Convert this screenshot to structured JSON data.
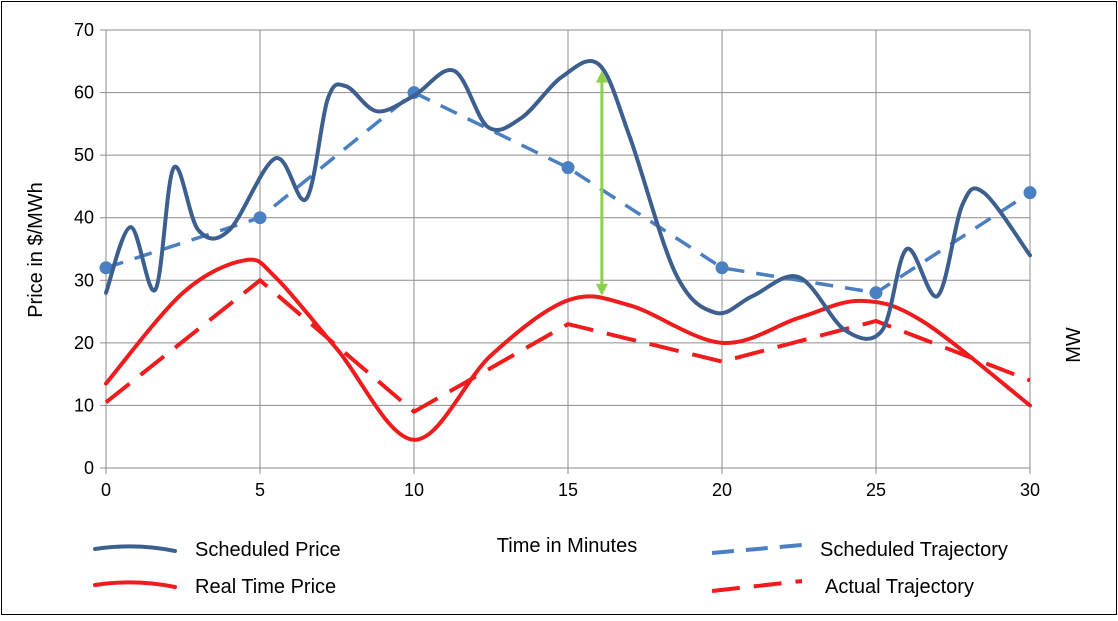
{
  "chart_data": {
    "type": "line",
    "title": "",
    "xlabel": "Time in Minutes",
    "ylabel": "Price in $/MWh",
    "y2label": "MW",
    "xlim": [
      0,
      30
    ],
    "ylim": [
      0,
      70
    ],
    "x_ticks": [
      "0",
      "5",
      "10",
      "15",
      "20",
      "25",
      "30"
    ],
    "y_ticks": [
      "0",
      "10",
      "20",
      "30",
      "40",
      "50",
      "60",
      "70"
    ],
    "grid": true,
    "legend_position": "bottom",
    "series": [
      {
        "name": "Scheduled Price",
        "color": "#3d5f8f",
        "style": "solid",
        "x": [
          0,
          0.8,
          1.6,
          2.2,
          3,
          4,
          5.5,
          6.5,
          7.2,
          7.8,
          8.8,
          10,
          11.3,
          12.4,
          13.5,
          14.8,
          16,
          17,
          18.5,
          19.8,
          21,
          22.5,
          24,
          25.2,
          26,
          27,
          27.8,
          28.5,
          30
        ],
        "y": [
          28,
          38.5,
          28.5,
          48,
          38,
          38,
          49.5,
          43,
          59,
          61,
          57,
          59.5,
          63.5,
          54.5,
          56,
          62.5,
          64.5,
          53,
          31,
          24.8,
          27.5,
          30.5,
          22,
          22,
          35,
          27.5,
          42,
          44,
          34
        ]
      },
      {
        "name": "Scheduled Trajectory",
        "color": "#4a7fc1",
        "style": "dashed-markers",
        "x": [
          0,
          5,
          10,
          15,
          20,
          25,
          30
        ],
        "y": [
          32,
          40,
          60,
          48,
          32,
          28,
          44
        ]
      },
      {
        "name": "Real Time Price",
        "color": "#ee1c1c",
        "style": "solid",
        "x": [
          0,
          2.5,
          4.5,
          5.5,
          7.5,
          10,
          12.5,
          15,
          17,
          20,
          22.5,
          24.5,
          26.5,
          30
        ],
        "y": [
          13.5,
          28,
          33.2,
          30.5,
          19,
          4.5,
          18,
          26.8,
          26,
          20,
          24,
          26.7,
          23.5,
          10
        ]
      },
      {
        "name": "Actual Trajectory",
        "color": "#ee1c1c",
        "style": "dashed",
        "x": [
          0,
          5,
          10,
          15,
          20,
          25,
          30
        ],
        "y": [
          10.5,
          30,
          9,
          23,
          17,
          23.5,
          14
        ]
      }
    ],
    "annotations": [
      {
        "type": "double-arrow",
        "color": "#8dd14b",
        "x": 16.1,
        "y_from": 27.5,
        "y_to": 63.5
      }
    ]
  }
}
